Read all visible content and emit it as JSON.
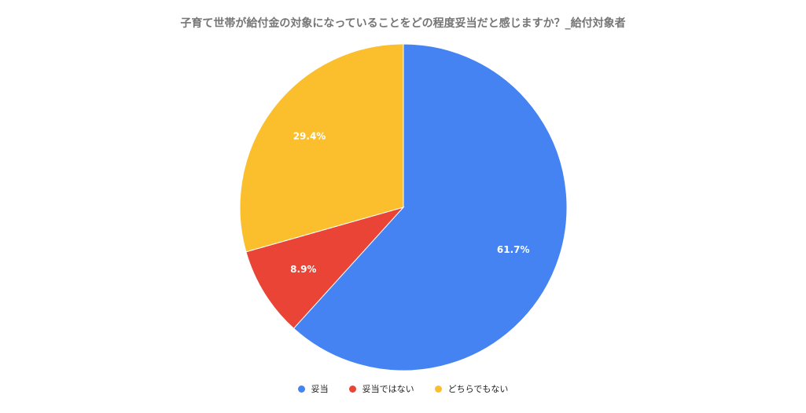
{
  "chart_data": {
    "type": "pie",
    "title": "子育て世帯が給付金の対象になっていることをどの程度妥当だと感じますか？_給付対象者",
    "categories": [
      "妥当",
      "妥当ではない",
      "どちらでもない"
    ],
    "values": [
      61.7,
      8.9,
      29.4
    ],
    "data_labels": [
      "61.7%",
      "8.9%",
      "29.4%"
    ],
    "colors": [
      "#4582f2",
      "#e94436",
      "#fbbf2d"
    ],
    "legend_position": "bottom"
  }
}
